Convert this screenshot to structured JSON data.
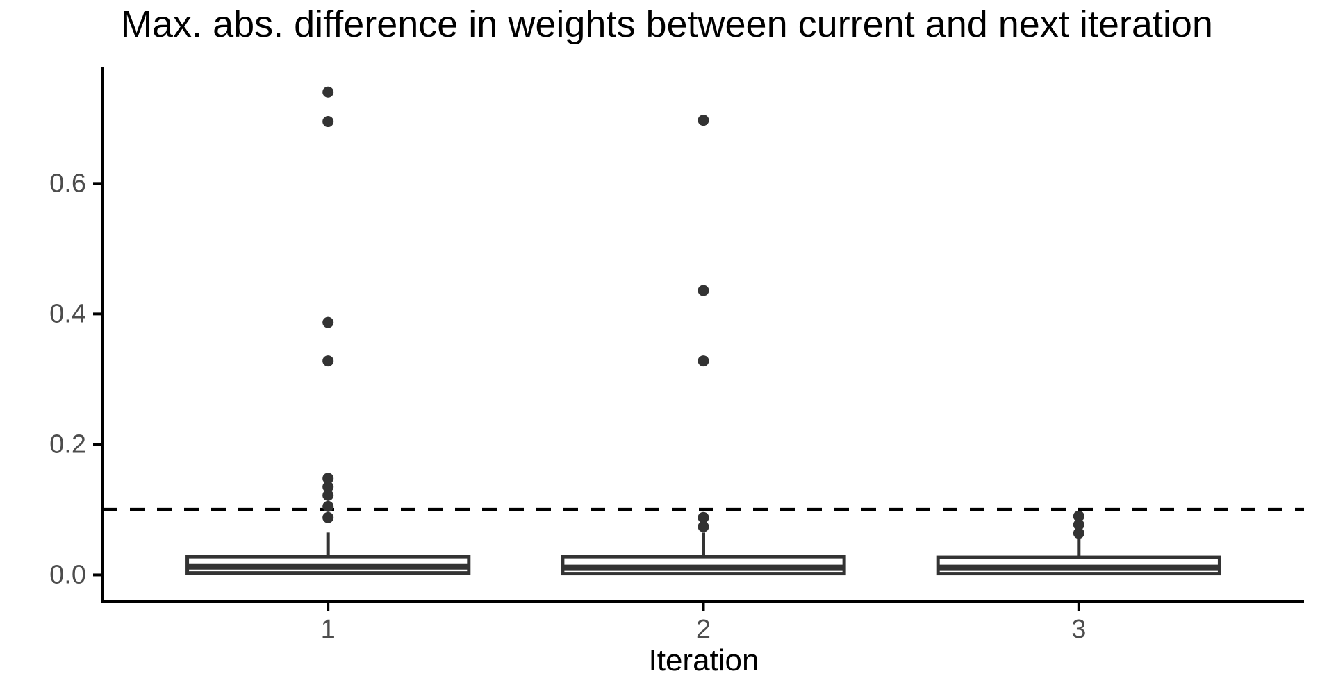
{
  "chart_data": {
    "type": "boxplot",
    "title": "Max. abs. difference in weights between current and next iteration",
    "xlabel": "Iteration",
    "ylabel": "",
    "categories": [
      "1",
      "2",
      "3"
    ],
    "y_ticks": [
      0.0,
      0.2,
      0.4,
      0.6
    ],
    "y_tick_labels": [
      "0.0",
      "0.2",
      "0.4",
      "0.6"
    ],
    "ylim": [
      -0.041,
      0.778
    ],
    "grid": false,
    "legend": false,
    "threshold_line": {
      "value": 0.1,
      "style": "dashed",
      "color": "#000000"
    },
    "series": [
      {
        "category": "1",
        "whisker_low": 0.0,
        "q1": 0.003,
        "median": 0.013,
        "q3": 0.028,
        "whisker_high": 0.065,
        "outliers": [
          0.088,
          0.105,
          0.122,
          0.135,
          0.148,
          0.328,
          0.387,
          0.695,
          0.74
        ]
      },
      {
        "category": "2",
        "whisker_low": 0.0,
        "q1": 0.002,
        "median": 0.011,
        "q3": 0.028,
        "whisker_high": 0.065,
        "outliers": [
          0.074,
          0.088,
          0.328,
          0.436,
          0.697
        ]
      },
      {
        "category": "3",
        "whisker_low": 0.0,
        "q1": 0.002,
        "median": 0.011,
        "q3": 0.027,
        "whisker_high": 0.056,
        "outliers": [
          0.064,
          0.077,
          0.09
        ]
      }
    ],
    "colors": {
      "box_stroke": "#333333",
      "box_fill": "#ffffff",
      "outlier": "#333333",
      "axis": "#000000",
      "tick_label": "#4d4d4d",
      "title": "#000000",
      "axis_title": "#000000"
    }
  }
}
